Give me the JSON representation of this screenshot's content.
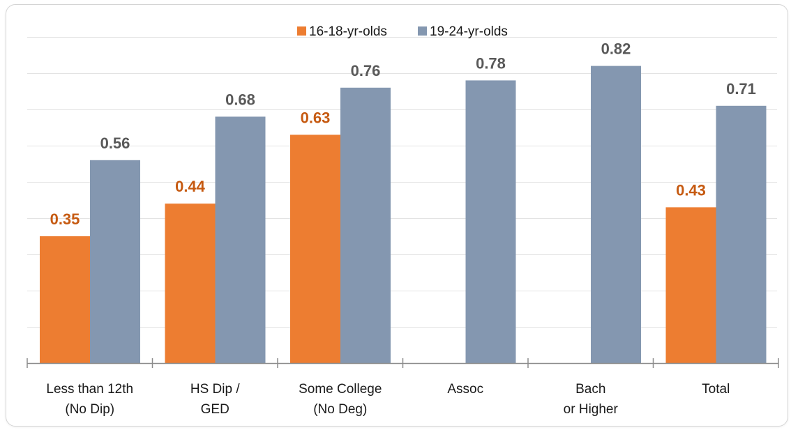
{
  "chart_data": {
    "type": "bar",
    "categories": [
      [
        "Less than 12th",
        "(No Dip)"
      ],
      [
        "HS Dip /",
        "GED"
      ],
      [
        "Some College",
        "(No Deg)"
      ],
      [
        "Assoc"
      ],
      [
        "Bach",
        "or Higher"
      ],
      [
        "Total"
      ]
    ],
    "series": [
      {
        "name": "16-18-yr-olds",
        "color": "#ed7d31",
        "label_color": "#c65a11",
        "values": [
          0.35,
          0.44,
          0.63,
          null,
          null,
          0.43
        ],
        "labels": [
          "0.35",
          "0.44",
          "0.63",
          "",
          "",
          "0.43"
        ]
      },
      {
        "name": "19-24-yr-olds",
        "color": "#8497b0",
        "label_color": "#595959",
        "values": [
          0.56,
          0.68,
          0.76,
          0.78,
          0.82,
          0.71
        ],
        "labels": [
          "0.56",
          "0.68",
          "0.76",
          "0.78",
          "0.82",
          "0.71"
        ]
      }
    ],
    "ylim": [
      0,
      0.9
    ],
    "grid": true,
    "legend_position": "top-center",
    "title": "",
    "xlabel": "",
    "ylabel": ""
  }
}
